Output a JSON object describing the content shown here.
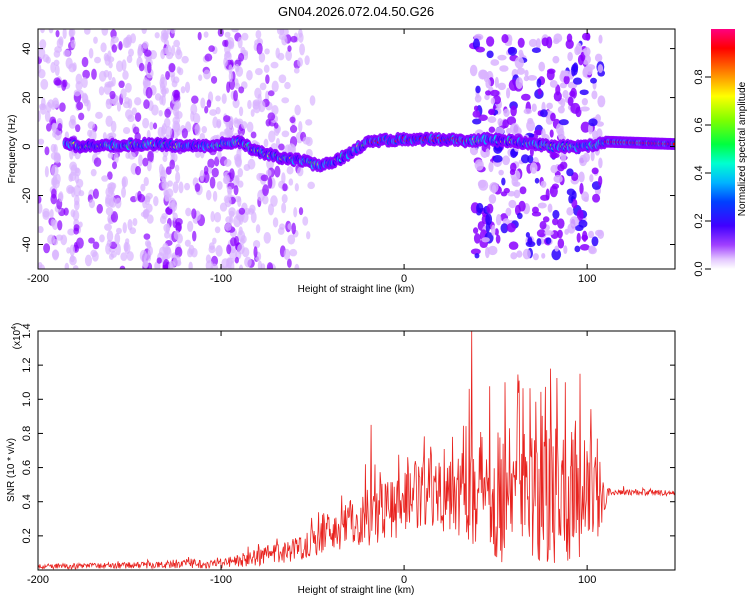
{
  "title": "GN04.2026.072.04.50.G26",
  "chart_data": [
    {
      "type": "heatmap",
      "xlabel": "Height of straight line (km)",
      "ylabel": "Frequency (Hz)",
      "xlim": [
        -200,
        148
      ],
      "ylim": [
        -50,
        48
      ],
      "xticks": [
        -200,
        -100,
        0,
        100
      ],
      "yticks": [
        -40,
        -20,
        0,
        20,
        40
      ],
      "colorbar": {
        "label": "Normalized spectral amplitude",
        "range": [
          0,
          1
        ],
        "ticks": [
          "0.0",
          "0.2",
          "0.4",
          "0.6",
          "0.8"
        ],
        "colormap": [
          "#ffffff",
          "#d9b3ff",
          "#8a00ff",
          "#2a00ff",
          "#0040ff",
          "#00b4ff",
          "#00ffd0",
          "#00ff40",
          "#7fff00",
          "#ffff00",
          "#ff8000",
          "#ff0000",
          "#ff0080"
        ]
      },
      "ridge": [
        {
          "x": -180,
          "y": 0
        },
        {
          "x": -140,
          "y": 1
        },
        {
          "x": -110,
          "y": 0
        },
        {
          "x": -90,
          "y": 2
        },
        {
          "x": -80,
          "y": -2
        },
        {
          "x": -70,
          "y": -4
        },
        {
          "x": -55,
          "y": -6
        },
        {
          "x": -45,
          "y": -8
        },
        {
          "x": -35,
          "y": -5
        },
        {
          "x": -28,
          "y": -2
        },
        {
          "x": -20,
          "y": 2
        },
        {
          "x": 0,
          "y": 3
        },
        {
          "x": 20,
          "y": 3
        },
        {
          "x": 35,
          "y": 2
        },
        {
          "x": 45,
          "y": 3
        },
        {
          "x": 60,
          "y": 2
        },
        {
          "x": 80,
          "y": 0
        },
        {
          "x": 100,
          "y": 0
        },
        {
          "x": 110,
          "y": 2
        },
        {
          "x": 148,
          "y": 1
        }
      ]
    },
    {
      "type": "line",
      "xlabel": "Height of straight line (km)",
      "ylabel": "SNR (10 * v/v)",
      "yscale_label": "(x10",
      "yscale_exponent": "4",
      "xlim": [
        -200,
        148
      ],
      "ylim": [
        0,
        1.4
      ],
      "xticks": [
        -200,
        -100,
        0,
        100
      ],
      "yticks": [
        "0.2",
        "0.4",
        "0.6",
        "0.8",
        "1.0",
        "1.2",
        "1.4"
      ],
      "color": "#e8221e",
      "envelope": [
        {
          "x": -200,
          "base": 0.02,
          "amp": 0.015
        },
        {
          "x": -130,
          "base": 0.03,
          "amp": 0.02
        },
        {
          "x": -100,
          "base": 0.04,
          "amp": 0.03
        },
        {
          "x": -80,
          "base": 0.07,
          "amp": 0.05
        },
        {
          "x": -60,
          "base": 0.12,
          "amp": 0.07
        },
        {
          "x": -40,
          "base": 0.22,
          "amp": 0.12
        },
        {
          "x": -20,
          "base": 0.32,
          "amp": 0.18
        },
        {
          "x": 0,
          "base": 0.4,
          "amp": 0.2
        },
        {
          "x": 20,
          "base": 0.48,
          "amp": 0.25
        },
        {
          "x": 35,
          "base": 0.52,
          "amp": 0.35
        },
        {
          "x": 50,
          "base": 0.45,
          "amp": 0.4
        },
        {
          "x": 70,
          "base": 0.42,
          "amp": 0.4
        },
        {
          "x": 90,
          "base": 0.42,
          "amp": 0.42
        },
        {
          "x": 105,
          "base": 0.4,
          "amp": 0.3
        },
        {
          "x": 112,
          "base": 0.46,
          "amp": 0.02
        },
        {
          "x": 148,
          "base": 0.45,
          "amp": 0.015
        }
      ],
      "peaks": [
        {
          "x": -18,
          "y": 0.85
        },
        {
          "x": 37,
          "y": 1.42
        },
        {
          "x": 55,
          "y": 1.1
        },
        {
          "x": 80,
          "y": 1.18
        },
        {
          "x": 88,
          "y": 1.1
        },
        {
          "x": 96,
          "y": 1.15
        }
      ]
    }
  ]
}
